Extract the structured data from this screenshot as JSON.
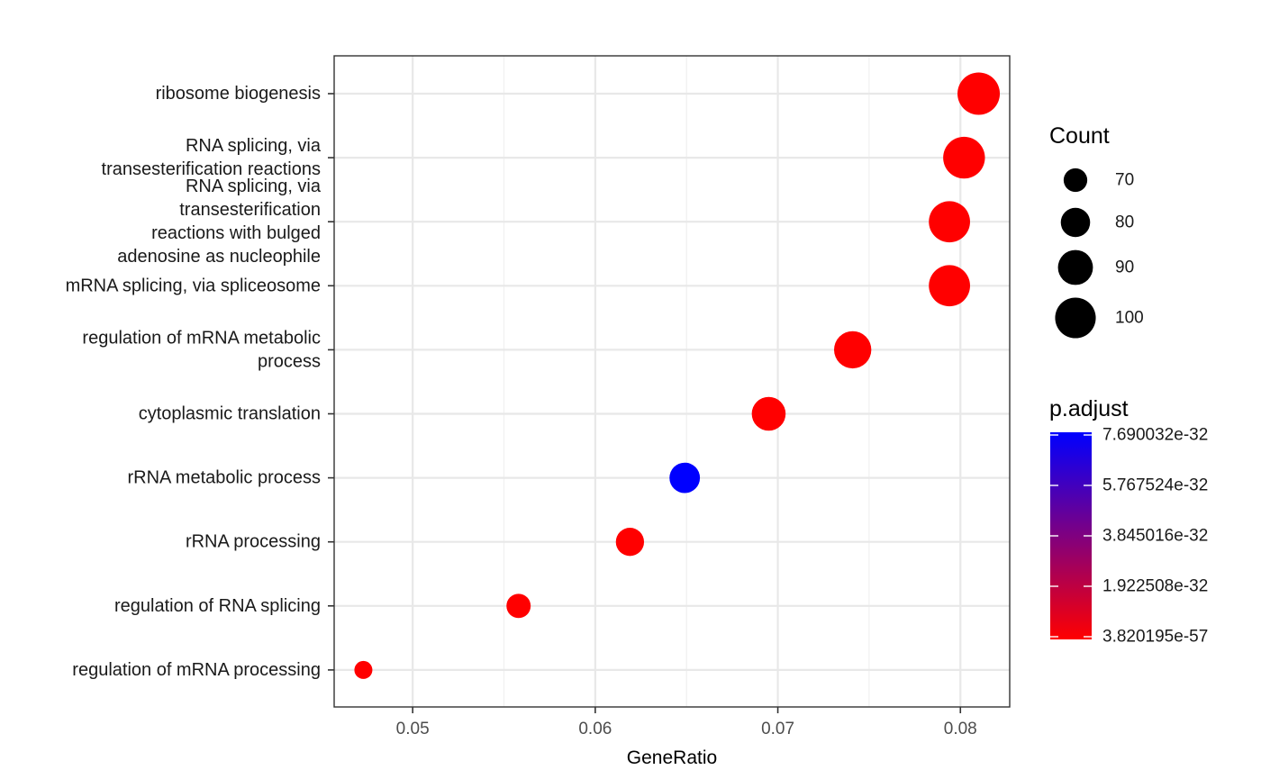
{
  "chart_data": {
    "type": "scatter",
    "xlabel": "GeneRatio",
    "ylabel": "",
    "title": "",
    "xlim": [
      0.0457,
      0.0827
    ],
    "x_ticks": [
      0.05,
      0.06,
      0.07,
      0.08
    ],
    "x_tick_labels": [
      "0.05",
      "0.06",
      "0.07",
      "0.08"
    ],
    "grid": true,
    "categories": [
      [
        "ribosome biogenesis"
      ],
      [
        "RNA splicing, via",
        "transesterification reactions"
      ],
      [
        "RNA splicing, via",
        "transesterification",
        "reactions with bulged",
        "adenosine as nucleophile"
      ],
      [
        "mRNA splicing, via spliceosome"
      ],
      [
        "regulation of mRNA metabolic",
        "process"
      ],
      [
        "cytoplasmic translation"
      ],
      [
        "rRNA metabolic process"
      ],
      [
        "rRNA processing"
      ],
      [
        "regulation of RNA splicing"
      ],
      [
        "regulation of mRNA processing"
      ]
    ],
    "points": [
      {
        "gene_ratio": 0.081,
        "count": 103,
        "p_adjust": 3.8e-57
      },
      {
        "gene_ratio": 0.0802,
        "count": 102,
        "p_adjust": 3.8e-57
      },
      {
        "gene_ratio": 0.0794,
        "count": 101,
        "p_adjust": 3.8e-57
      },
      {
        "gene_ratio": 0.0794,
        "count": 101,
        "p_adjust": 3.8e-57
      },
      {
        "gene_ratio": 0.0741,
        "count": 94,
        "p_adjust": 3.8e-57
      },
      {
        "gene_ratio": 0.0695,
        "count": 88,
        "p_adjust": 3.8e-57
      },
      {
        "gene_ratio": 0.0649,
        "count": 82,
        "p_adjust": 7.69e-32
      },
      {
        "gene_ratio": 0.0619,
        "count": 78,
        "p_adjust": 3.8e-57
      },
      {
        "gene_ratio": 0.0558,
        "count": 71,
        "p_adjust": 3.8e-57
      },
      {
        "gene_ratio": 0.0473,
        "count": 60,
        "p_adjust": 3.8e-57
      }
    ],
    "size_legend": {
      "title": "Count",
      "entries": [
        {
          "label": "70",
          "value": 70
        },
        {
          "label": "80",
          "value": 80
        },
        {
          "label": "90",
          "value": 90
        },
        {
          "label": "100",
          "value": 100
        }
      ]
    },
    "color_legend": {
      "title": "p.adjust",
      "low_color": "#ff0000",
      "high_color": "#0000ff",
      "range": [
        3.820195e-57,
        7.690032e-32
      ],
      "tick_labels": [
        "7.690032e-32",
        "5.767524e-32",
        "3.845016e-32",
        "1.922508e-32",
        "3.820195e-57"
      ]
    },
    "legend_placement": "right"
  }
}
